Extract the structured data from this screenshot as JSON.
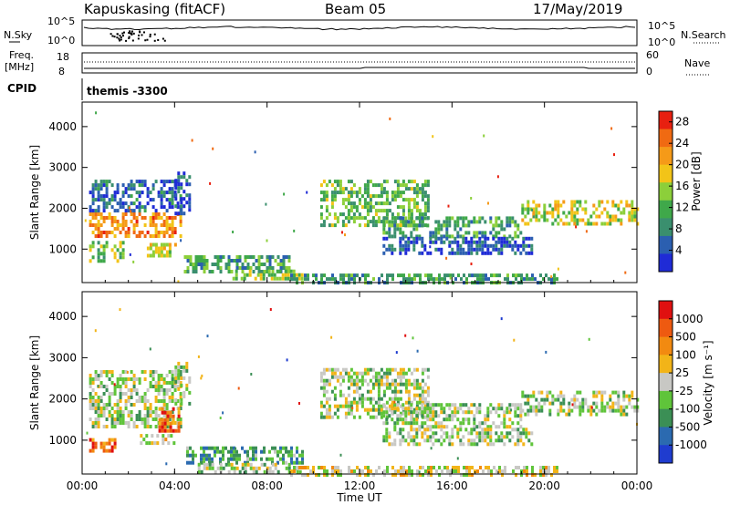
{
  "header": {
    "radar": "Kapuskasing (fitACF)",
    "beam": "Beam 05",
    "date": "17/May/2019"
  },
  "top_panels": {
    "n_sky_label": "N.Sky",
    "n_search_label": "N.Search",
    "sky_ticks": [
      "10^5",
      "10^0"
    ],
    "search_ticks": [
      "10^5",
      "10^0"
    ],
    "freq_label_1": "Freq.",
    "freq_label_2": "[MHz]",
    "freq_ticks": [
      "18",
      "8"
    ],
    "nave_label": "Nave",
    "nave_ticks": [
      "60",
      "0"
    ],
    "cpid_label": "CPID",
    "cpid_value": "themis -3300"
  },
  "colors": {
    "power_scale": [
      "#1f2bd6",
      "#2b5fb0",
      "#3a8f6e",
      "#3fa84a",
      "#8ccf3a",
      "#f2c418",
      "#f59a18",
      "#f06a12",
      "#e82010"
    ],
    "velocity_scale": [
      "#1f3ccf",
      "#2b6ab0",
      "#3b8f55",
      "#5fc43a",
      "#c8c8c4",
      "#f2b418",
      "#f28a10",
      "#ee5a10",
      "#e01010"
    ],
    "ground_scatter": "#c8c8c4"
  },
  "chart_data": [
    {
      "type": "heatmap",
      "name": "power",
      "x_ticks": [
        "00:00",
        "04:00",
        "08:00",
        "12:00",
        "16:00",
        "20:00",
        "00:00"
      ],
      "y_ticks": [
        "1000",
        "2000",
        "3000",
        "4000"
      ],
      "ylabel": "Slant Range [km]",
      "xlim_hours": [
        0,
        24
      ],
      "ylim_km": [
        180,
        4600
      ],
      "colorbar": {
        "label": "Power [dB]",
        "ticks": [
          "4",
          "8",
          "12",
          "16",
          "20",
          "24",
          "28"
        ],
        "range": [
          0,
          30
        ]
      },
      "regions": [
        {
          "t": [
            0.3,
            4.3
          ],
          "r": [
            1350,
            1900
          ],
          "level": 0.75
        },
        {
          "t": [
            0.3,
            4.3
          ],
          "r": [
            1900,
            2700
          ],
          "level": 0.2
        },
        {
          "t": [
            0.3,
            1.8
          ],
          "r": [
            750,
            1200
          ],
          "level": 0.45
        },
        {
          "t": [
            2.8,
            4.1
          ],
          "r": [
            850,
            1150
          ],
          "level": 0.55
        },
        {
          "t": [
            4.0,
            4.6
          ],
          "r": [
            1900,
            2900
          ],
          "level": 0.15
        },
        {
          "t": [
            4.4,
            9.0
          ],
          "r": [
            450,
            850
          ],
          "level": 0.35
        },
        {
          "t": [
            6.5,
            9.5
          ],
          "r": [
            250,
            500
          ],
          "level": 0.5
        },
        {
          "t": [
            9.0,
            20.5
          ],
          "r": [
            200,
            400
          ],
          "level": 0.3
        },
        {
          "t": [
            10.3,
            15.0
          ],
          "r": [
            1600,
            2700
          ],
          "level": 0.4
        },
        {
          "t": [
            13.0,
            19.0
          ],
          "r": [
            1300,
            1800
          ],
          "level": 0.35
        },
        {
          "t": [
            13.0,
            19.5
          ],
          "r": [
            900,
            1300
          ],
          "level": 0.15
        },
        {
          "t": [
            19.0,
            24.0
          ],
          "r": [
            1600,
            2200
          ],
          "level": 0.55
        }
      ]
    },
    {
      "type": "heatmap",
      "name": "velocity",
      "x_ticks": [
        "00:00",
        "04:00",
        "08:00",
        "12:00",
        "16:00",
        "20:00",
        "00:00"
      ],
      "y_ticks": [
        "1000",
        "2000",
        "3000",
        "4000"
      ],
      "ylabel": "Slant Range [km]",
      "xlabel": "Time UT",
      "xlim_hours": [
        0,
        24
      ],
      "ylim_km": [
        180,
        4600
      ],
      "colorbar": {
        "label": "Velocity [m s⁻¹]",
        "ticks": [
          "1000",
          "500",
          "100",
          "25",
          "-25",
          "-100",
          "-500",
          "-1000"
        ]
      },
      "regions": [
        {
          "t": [
            0.3,
            4.3
          ],
          "r": [
            1300,
            2700
          ],
          "level": 0.45
        },
        {
          "t": [
            0.3,
            1.4
          ],
          "r": [
            700,
            1050
          ],
          "level": 0.8
        },
        {
          "t": [
            3.3,
            4.2
          ],
          "r": [
            1250,
            1800
          ],
          "level": 0.8
        },
        {
          "t": [
            2.5,
            4.0
          ],
          "r": [
            900,
            1150
          ],
          "level": 0.5
        },
        {
          "t": [
            4.0,
            4.6
          ],
          "r": [
            1900,
            2900
          ],
          "level": 0.45
        },
        {
          "t": [
            4.5,
            9.5
          ],
          "r": [
            450,
            850
          ],
          "level": 0.3
        },
        {
          "t": [
            5.0,
            9.5
          ],
          "r": [
            200,
            450
          ],
          "level": 0.45
        },
        {
          "t": [
            9.0,
            20.5
          ],
          "r": [
            200,
            380
          ],
          "level": 0.55
        },
        {
          "t": [
            10.3,
            15.0
          ],
          "r": [
            1600,
            2750
          ],
          "level": 0.45
        },
        {
          "t": [
            13.0,
            19.0
          ],
          "r": [
            1300,
            1900
          ],
          "level": 0.45
        },
        {
          "t": [
            13.0,
            19.5
          ],
          "r": [
            900,
            1300
          ],
          "level": 0.45
        },
        {
          "t": [
            19.0,
            24.0
          ],
          "r": [
            1600,
            2200
          ],
          "level": 0.45
        }
      ]
    }
  ]
}
